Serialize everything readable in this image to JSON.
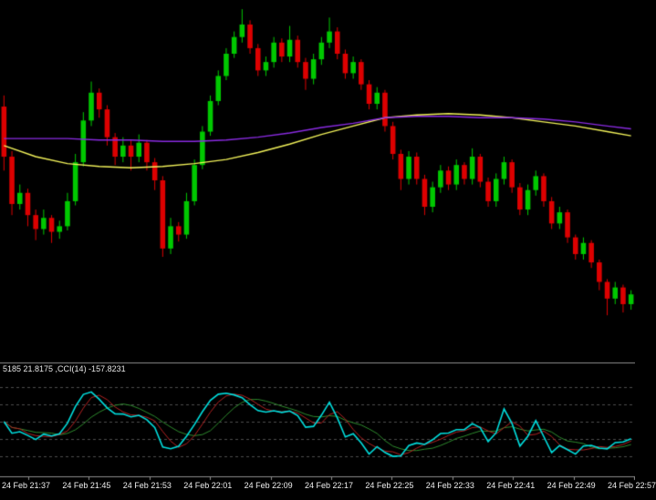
{
  "colors": {
    "background": "#000000",
    "candle_up": "#00c800",
    "candle_down": "#dd0000",
    "ma_fast": "#f2f25a",
    "ma_slow": "#8a2be2",
    "cci_main": "#00dede",
    "cci_red": "#b22222",
    "cci_green": "#2e8b2e",
    "level_line": "#4d4d4d",
    "separator": "#8c8c8c",
    "axis_text": "#efefef"
  },
  "chart_data": {
    "type": "candlestick",
    "interval_minutes": 1,
    "price_range": [
      21.718,
      21.972
    ],
    "candles": [
      [
        21.898,
        21.906,
        21.852,
        21.862
      ],
      [
        21.862,
        21.866,
        21.82,
        21.828
      ],
      [
        21.828,
        21.842,
        21.824,
        21.836
      ],
      [
        21.836,
        21.839,
        21.812,
        21.82
      ],
      [
        21.82,
        21.824,
        21.802,
        21.81
      ],
      [
        21.81,
        21.824,
        21.806,
        21.818
      ],
      [
        21.818,
        21.82,
        21.8,
        21.808
      ],
      [
        21.808,
        21.816,
        21.803,
        21.812
      ],
      [
        21.812,
        21.836,
        21.809,
        21.83
      ],
      [
        21.83,
        21.864,
        21.827,
        21.858
      ],
      [
        21.858,
        21.894,
        21.855,
        21.888
      ],
      [
        21.888,
        21.916,
        21.884,
        21.908
      ],
      [
        21.908,
        21.911,
        21.89,
        21.896
      ],
      [
        21.896,
        21.899,
        21.87,
        21.876
      ],
      [
        21.876,
        21.879,
        21.856,
        21.862
      ],
      [
        21.862,
        21.876,
        21.858,
        21.87
      ],
      [
        21.87,
        21.874,
        21.852,
        21.862
      ],
      [
        21.862,
        21.878,
        21.858,
        21.872
      ],
      [
        21.872,
        21.874,
        21.852,
        21.858
      ],
      [
        21.858,
        21.861,
        21.838,
        21.845
      ],
      [
        21.845,
        21.848,
        21.79,
        21.796
      ],
      [
        21.796,
        21.818,
        21.792,
        21.812
      ],
      [
        21.812,
        21.815,
        21.801,
        21.806
      ],
      [
        21.806,
        21.836,
        21.803,
        21.83
      ],
      [
        21.83,
        21.86,
        21.827,
        21.856
      ],
      [
        21.856,
        21.884,
        21.853,
        21.88
      ],
      [
        21.88,
        21.906,
        21.877,
        21.902
      ],
      [
        21.902,
        21.924,
        21.899,
        21.92
      ],
      [
        21.92,
        21.94,
        21.917,
        21.936
      ],
      [
        21.936,
        21.952,
        21.933,
        21.948
      ],
      [
        21.948,
        21.968,
        21.944,
        21.957
      ],
      [
        21.957,
        21.96,
        21.936,
        21.94
      ],
      [
        21.94,
        21.943,
        21.92,
        21.924
      ],
      [
        21.924,
        21.934,
        21.92,
        21.93
      ],
      [
        21.93,
        21.948,
        21.926,
        21.944
      ],
      [
        21.944,
        21.947,
        21.93,
        21.934
      ],
      [
        21.934,
        21.956,
        21.93,
        21.946
      ],
      [
        21.946,
        21.949,
        21.926,
        21.93
      ],
      [
        21.93,
        21.933,
        21.91,
        21.918
      ],
      [
        21.918,
        21.936,
        21.914,
        21.932
      ],
      [
        21.932,
        21.948,
        21.928,
        21.944
      ],
      [
        21.944,
        21.962,
        21.94,
        21.952
      ],
      [
        21.952,
        21.955,
        21.932,
        21.936
      ],
      [
        21.936,
        21.939,
        21.918,
        21.922
      ],
      [
        21.922,
        21.934,
        21.918,
        21.93
      ],
      [
        21.93,
        21.932,
        21.91,
        21.914
      ],
      [
        21.914,
        21.917,
        21.896,
        21.9
      ],
      [
        21.9,
        21.912,
        21.896,
        21.908
      ],
      [
        21.908,
        21.91,
        21.88,
        21.884
      ],
      [
        21.884,
        21.887,
        21.86,
        21.864
      ],
      [
        21.864,
        21.867,
        21.838,
        21.846
      ],
      [
        21.846,
        21.866,
        21.842,
        21.862
      ],
      [
        21.862,
        21.865,
        21.842,
        21.846
      ],
      [
        21.846,
        21.849,
        21.82,
        21.826
      ],
      [
        21.826,
        21.844,
        21.822,
        21.84
      ],
      [
        21.84,
        21.856,
        21.836,
        21.852
      ],
      [
        21.852,
        21.855,
        21.838,
        21.842
      ],
      [
        21.842,
        21.86,
        21.838,
        21.856
      ],
      [
        21.856,
        21.858,
        21.842,
        21.846
      ],
      [
        21.846,
        21.868,
        21.842,
        21.862
      ],
      [
        21.862,
        21.864,
        21.84,
        21.844
      ],
      [
        21.844,
        21.847,
        21.826,
        21.83
      ],
      [
        21.83,
        21.85,
        21.826,
        21.846
      ],
      [
        21.846,
        21.862,
        21.842,
        21.858
      ],
      [
        21.858,
        21.86,
        21.836,
        21.84
      ],
      [
        21.84,
        21.843,
        21.82,
        21.824
      ],
      [
        21.824,
        21.842,
        21.82,
        21.838
      ],
      [
        21.838,
        21.852,
        21.834,
        21.848
      ],
      [
        21.848,
        21.85,
        21.826,
        21.83
      ],
      [
        21.83,
        21.833,
        21.81,
        21.814
      ],
      [
        21.814,
        21.826,
        21.81,
        21.822
      ],
      [
        21.822,
        21.824,
        21.8,
        21.804
      ],
      [
        21.804,
        21.806,
        21.788,
        21.792
      ],
      [
        21.792,
        21.804,
        21.788,
        21.8
      ],
      [
        21.8,
        21.802,
        21.782,
        21.786
      ],
      [
        21.786,
        21.788,
        21.766,
        21.772
      ],
      [
        21.772,
        21.774,
        21.748,
        21.76
      ],
      [
        21.76,
        21.772,
        21.756,
        21.768
      ],
      [
        21.768,
        21.77,
        21.75,
        21.756
      ],
      [
        21.756,
        21.766,
        21.752,
        21.763
      ]
    ],
    "overlays": [
      {
        "name": "ma-fast-yellow",
        "color_key": "ma_fast",
        "points_every": 4,
        "values": [
          21.87,
          21.862,
          21.857,
          21.855,
          21.854,
          21.855,
          21.857,
          21.86,
          21.865,
          21.871,
          21.878,
          21.884,
          21.89,
          21.892,
          21.893,
          21.892,
          21.89,
          21.887,
          21.884,
          21.88,
          21.877
        ]
      },
      {
        "name": "ma-slow-purple",
        "color_key": "ma_slow",
        "points_every": 4,
        "values": [
          21.875,
          21.875,
          21.875,
          21.874,
          21.874,
          21.873,
          21.873,
          21.874,
          21.876,
          21.879,
          21.883,
          21.886,
          21.89,
          21.891,
          21.891,
          21.89,
          21.89,
          21.889,
          21.887,
          21.884,
          21.882
        ]
      }
    ],
    "indicator": {
      "name": "CCI",
      "period": 14,
      "label": "5185 21.8175 ,CCI(14) -157.8231",
      "last_value": -157.8231,
      "range": [
        -300,
        300
      ],
      "levels": [
        200,
        100,
        0,
        -100,
        -200
      ],
      "lines": [
        {
          "name": "cci-green-smooth",
          "color_key": "cci_green",
          "smooth": 7,
          "width": 1
        },
        {
          "name": "cci-red-smooth",
          "color_key": "cci_red",
          "smooth": 3,
          "width": 1
        },
        {
          "name": "cci-main-cyan",
          "color_key": "cci_main",
          "smooth": 1,
          "width": 1.6
        }
      ]
    },
    "x_axis": {
      "label_every_candles": 8,
      "labels": [
        "24 Feb 21:37",
        "24 Feb 21:45",
        "24 Feb 21:53",
        "24 Feb 22:01",
        "24 Feb 22:09",
        "24 Feb 22:17",
        "24 Feb 22:25",
        "24 Feb 22:33",
        "24 Feb 22:41",
        "24 Feb 22:49",
        "24 Feb 22:57"
      ]
    }
  }
}
